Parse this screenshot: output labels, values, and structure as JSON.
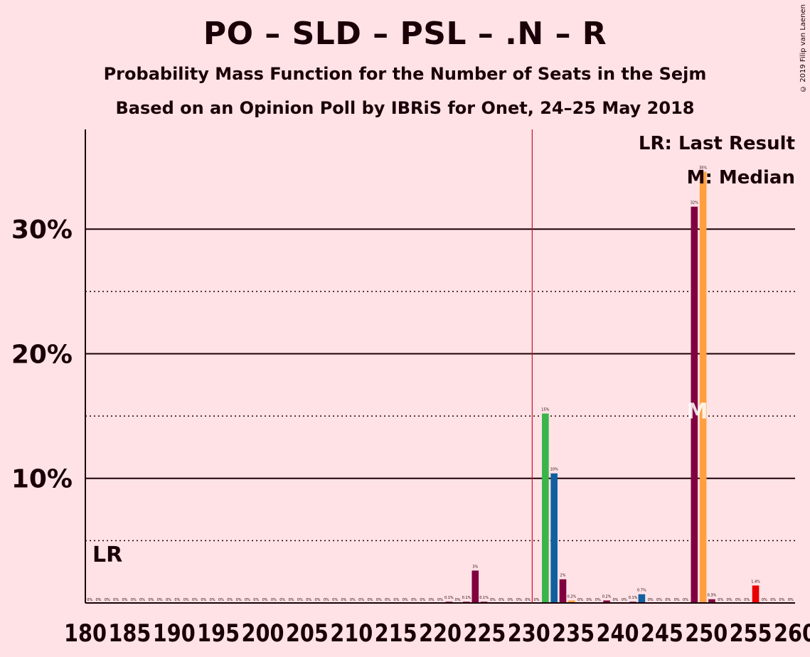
{
  "title": "PO – SLD – PSL – .N – R",
  "subtitle": "Probability Mass Function for the Number of Seats in the Sejm",
  "subtitle2": "Based on an Opinion Poll by IBRiS for Onet, 24–25 May 2018",
  "copyright": "© 2019 Filip van Laenen",
  "legend": {
    "last_result": "LR: Last Result",
    "median": "M: Median"
  },
  "markers": {
    "last_result_label": "LR",
    "median_label": "M"
  },
  "colors": {
    "background": "#FFE2E5",
    "axis": "#1a0008",
    "majority_line": "#C8102E",
    "PiS": "#800040",
    "median_bar": "#FFA040",
    "PSL": "#39B54A",
    "N": "#1060A0",
    "K": "#E80000"
  },
  "chart_data": {
    "type": "bar",
    "xlabel": "",
    "ylabel": "",
    "ylim": [
      0,
      38
    ],
    "yticks_labeled": [
      10,
      20,
      30
    ],
    "ytick_labels": [
      "10%",
      "20%",
      "30%"
    ],
    "yticks_dotted": [
      5,
      15,
      25
    ],
    "x_range": [
      180,
      260
    ],
    "xtick_labels": [
      "180",
      "185",
      "190",
      "195",
      "200",
      "205",
      "210",
      "215",
      "220",
      "225",
      "230",
      "235",
      "240",
      "245",
      "250",
      "255",
      "260"
    ],
    "majority_line_x": 231,
    "last_result_x": 180,
    "median_x": 250,
    "bars": [
      {
        "x": 221,
        "value": 0.1,
        "label": "0.1%",
        "color": "PiS"
      },
      {
        "x": 223,
        "value": 0.1,
        "label": "0.1%",
        "color": "PiS"
      },
      {
        "x": 224,
        "value": 2.6,
        "label": "3%",
        "color": "PiS"
      },
      {
        "x": 225,
        "value": 0.1,
        "label": "0.1%",
        "color": "PiS"
      },
      {
        "x": 232,
        "value": 15.2,
        "label": "15%",
        "color": "PSL"
      },
      {
        "x": 233,
        "value": 10.4,
        "label": "10%",
        "color": "N"
      },
      {
        "x": 234,
        "value": 1.9,
        "label": "2%",
        "color": "PiS"
      },
      {
        "x": 235,
        "value": 0.2,
        "label": "0.2%",
        "color": "median_bar"
      },
      {
        "x": 239,
        "value": 0.2,
        "label": "0.2%",
        "color": "PiS"
      },
      {
        "x": 242,
        "value": 0.1,
        "label": "0.1%",
        "color": "PiS"
      },
      {
        "x": 243,
        "value": 0.7,
        "label": "0.7%",
        "color": "N"
      },
      {
        "x": 249,
        "value": 31.8,
        "label": "32%",
        "color": "PiS"
      },
      {
        "x": 250,
        "value": 34.6,
        "label": "35%",
        "color": "median_bar"
      },
      {
        "x": 251,
        "value": 0.3,
        "label": "0.3%",
        "color": "PiS"
      },
      {
        "x": 256,
        "value": 1.4,
        "label": "1.4%",
        "color": "K"
      }
    ]
  }
}
